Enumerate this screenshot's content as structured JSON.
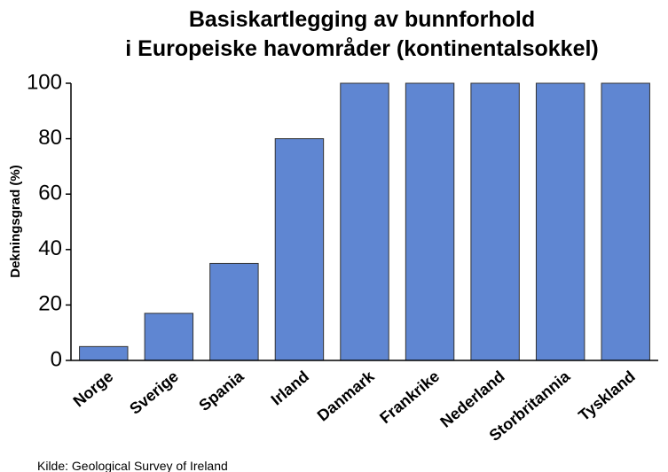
{
  "chart_data": {
    "type": "bar",
    "title": [
      "Basiskartlegging av bunnforhold",
      "i Europeiske havområder (kontinentalsokkel)"
    ],
    "y_label": "Dekningsgrad (%)",
    "categories": [
      "Norge",
      "Sverige",
      "Spania",
      "Irland",
      "Danmark",
      "Frankrike",
      "Nederland",
      "Storbritannia",
      "Tyskland"
    ],
    "values": [
      5,
      17,
      35,
      80,
      100,
      100,
      100,
      100,
      100
    ],
    "color": "#5f86d2",
    "ylim": [
      0,
      100
    ],
    "yticks": [
      0,
      20,
      40,
      60,
      80,
      100
    ],
    "grid": false,
    "annotation": "Kilde: Geological Survey of Ireland"
  }
}
